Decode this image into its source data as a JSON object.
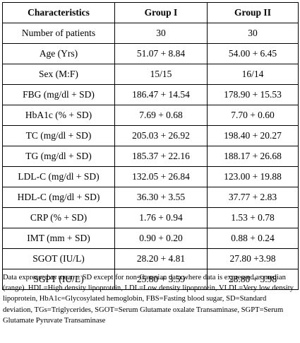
{
  "table": {
    "headers": [
      "Characteristics",
      "Group I",
      "Group II"
    ],
    "rows": [
      [
        "Number of patients",
        "30",
        "30"
      ],
      [
        "Age (Yrs)",
        "51.07 + 8.84",
        "54.00 + 6.45"
      ],
      [
        "Sex (M:F)",
        "15/15",
        "16/14"
      ],
      [
        "FBG (mg/dl + SD)",
        "186.47 + 14.54",
        "178.90 + 15.53"
      ],
      [
        "HbA1c (% + SD)",
        "7.69 + 0.68",
        "7.70 + 0.60"
      ],
      [
        "TC (mg/dl + SD)",
        "205.03 + 26.92",
        "198.40 + 20.27"
      ],
      [
        "TG (mg/dl + SD)",
        "185.37 + 22.16",
        "188.17 + 26.68"
      ],
      [
        "LDL-C (mg/dl + SD)",
        "132.05 + 26.84",
        "123.00 + 19.88"
      ],
      [
        "HDL-C (mg/dl + SD)",
        "36.30 + 3.55",
        "37.77 + 2.83"
      ],
      [
        "CRP (% + SD)",
        "1.76 + 0.94",
        "1.53 + 0.78"
      ],
      [
        "IMT (mm + SD)",
        "0.90 + 0.20",
        "0.88 + 0.24"
      ],
      [
        "SGOT (IU/L)",
        "28.20 + 4.81",
        "27.80 +3.98"
      ],
      [
        "SGPT (IU/L)",
        "25.80 + 3.59",
        "28.80 + 3.98"
      ]
    ]
  },
  "footnote": "Data expressed as mean ± SD except for non-Gaussian data where data is expressed as median (range). HDL=High density lipoprotein, LDL=Low density lipoprotein, VLDL=Very low density lipoprotein, HbA1c=Glycosylated hemoglobin, FBS=Fasting blood sugar, SD=Standard deviation, TGs=Triglycerides, SGOT=Serum Glutamate oxalate Transaminase, SGPT=Serum Glutamate Pyruvate Transaminase"
}
